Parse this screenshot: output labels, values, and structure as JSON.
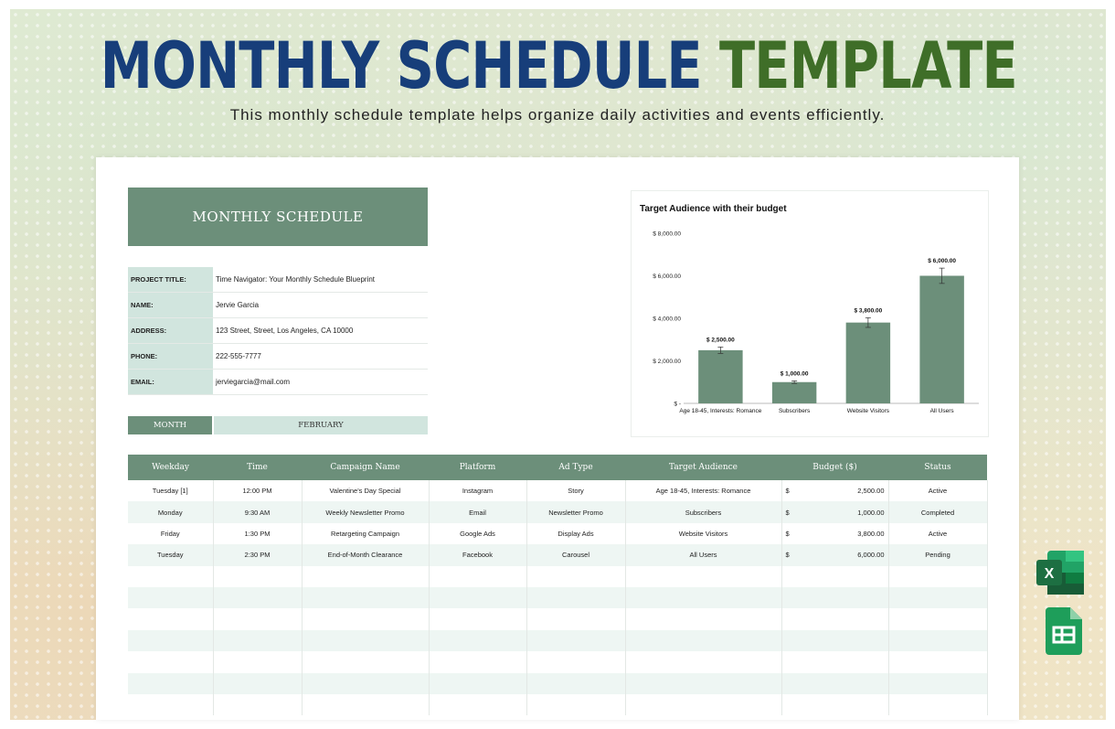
{
  "banner": {
    "title_part1": "MONTHLY SCHEDULE",
    "title_part2": "TEMPLATE",
    "subtitle": "This monthly schedule template helps organize daily activities and events efficiently."
  },
  "sheet": {
    "header": "MONTHLY SCHEDULE",
    "info": [
      {
        "label": "PROJECT TITLE:",
        "value": "Time Navigator: Your Monthly Schedule Blueprint"
      },
      {
        "label": "NAME:",
        "value": "Jervie Garcia"
      },
      {
        "label": "ADDRESS:",
        "value": "123 Street, Street, Los Angeles, CA 10000"
      },
      {
        "label": "PHONE:",
        "value": "222-555-7777"
      },
      {
        "label": "EMAIL:",
        "value": "jerviegarcia@mail.com"
      }
    ],
    "month_label": "MONTH",
    "month_value": "FEBRUARY"
  },
  "chart_data": {
    "type": "bar",
    "title": "Target Audience with their budget",
    "categories": [
      "Age 18-45, Interests: Romance",
      "Subscribers",
      "Website Visitors",
      "All Users"
    ],
    "values": [
      2500,
      1000,
      3800,
      6000
    ],
    "data_labels": [
      "$ 2,500.00",
      "$ 1,000.00",
      "$ 3,800.00",
      "$ 6,000.00"
    ],
    "yticks": [
      0,
      2000,
      4000,
      6000,
      8000
    ],
    "ytick_labels": [
      "$ -",
      "$ 2,000.00",
      "$ 4,000.00",
      "$ 6,000.00",
      "$ 8,000.00"
    ],
    "ylim": [
      0,
      8000
    ],
    "bar_color": "#6c8f7a",
    "error_bars": true,
    "grid": false,
    "legend": "none"
  },
  "table": {
    "columns": [
      "Weekday",
      "Time",
      "Campaign Name",
      "Platform",
      "Ad Type",
      "Target Audience",
      "Budget ($)",
      "Status"
    ],
    "rows": [
      {
        "weekday": "Tuesday [1]",
        "time": "12:00 PM",
        "campaign": "Valentine's Day Special",
        "platform": "Instagram",
        "ad_type": "Story",
        "audience": "Age 18-45, Interests: Romance",
        "currency": "$",
        "budget": "2,500.00",
        "status": "Active"
      },
      {
        "weekday": "Monday",
        "time": "9:30 AM",
        "campaign": "Weekly Newsletter Promo",
        "platform": "Email",
        "ad_type": "Newsletter Promo",
        "audience": "Subscribers",
        "currency": "$",
        "budget": "1,000.00",
        "status": "Completed"
      },
      {
        "weekday": "Friday",
        "time": "1:30 PM",
        "campaign": "Retargeting Campaign",
        "platform": "Google Ads",
        "ad_type": "Display Ads",
        "audience": "Website Visitors",
        "currency": "$",
        "budget": "3,800.00",
        "status": "Active"
      },
      {
        "weekday": "Tuesday",
        "time": "2:30 PM",
        "campaign": "End-of-Month Clearance",
        "platform": "Facebook",
        "ad_type": "Carousel",
        "audience": "All Users",
        "currency": "$",
        "budget": "6,000.00",
        "status": "Pending"
      }
    ],
    "empty_rows": 7
  },
  "icons": {
    "excel": "microsoft-excel-icon",
    "sheets": "google-sheets-icon",
    "excel_letter": "X",
    "excel_color": "#1d6f42",
    "sheets_color": "#1e9e5a"
  }
}
